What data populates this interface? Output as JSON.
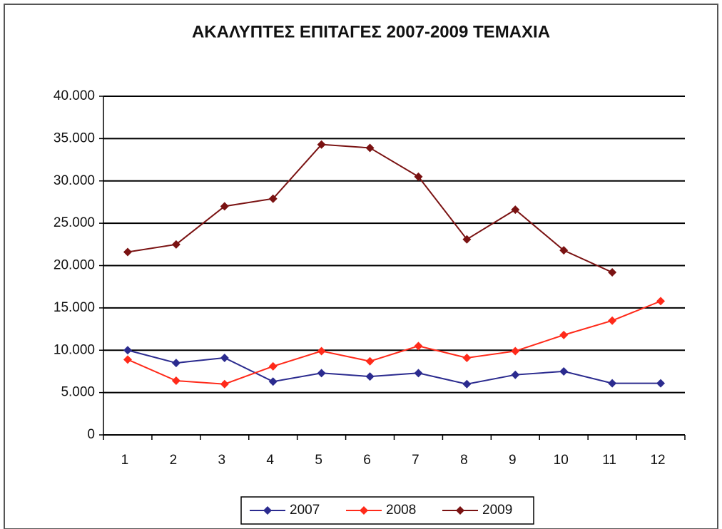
{
  "chart_data": {
    "type": "line",
    "title": "ΑΚΑΛΥΠΤΕΣ ΕΠΙΤΑΓΕΣ 2007-2009 ΤΕΜΑΧΙΑ",
    "categories": [
      "1",
      "2",
      "3",
      "4",
      "5",
      "6",
      "7",
      "8",
      "9",
      "10",
      "11",
      "12"
    ],
    "series": [
      {
        "name": "2007",
        "color": "#2b2b8f",
        "values": [
          10000,
          8500,
          9100,
          6300,
          7300,
          6900,
          7300,
          6000,
          7100,
          7500,
          6100,
          6100
        ]
      },
      {
        "name": "2008",
        "color": "#ff2a1a",
        "values": [
          8900,
          6400,
          6000,
          8100,
          9900,
          8700,
          10500,
          9100,
          9900,
          11800,
          13500,
          15800
        ]
      },
      {
        "name": "2009",
        "color": "#7a1212",
        "values": [
          21600,
          22500,
          27000,
          27900,
          34300,
          33900,
          30500,
          23100,
          26600,
          21800,
          19200,
          null
        ]
      }
    ],
    "ylim": [
      0,
      40000
    ],
    "yticks": [
      0,
      {
        "value": 5000,
        "label": "5.000"
      },
      {
        "value": 10000,
        "label": "10.000"
      },
      {
        "value": 15000,
        "label": "15.000"
      },
      {
        "value": 20000,
        "label": "20.000"
      },
      {
        "value": 25000,
        "label": "25.000"
      },
      {
        "value": 30000,
        "label": "30.000"
      },
      {
        "value": 35000,
        "label": "35.000"
      },
      {
        "value": 40000,
        "label": "40.000"
      }
    ],
    "grid": true,
    "legend": "bottom"
  }
}
